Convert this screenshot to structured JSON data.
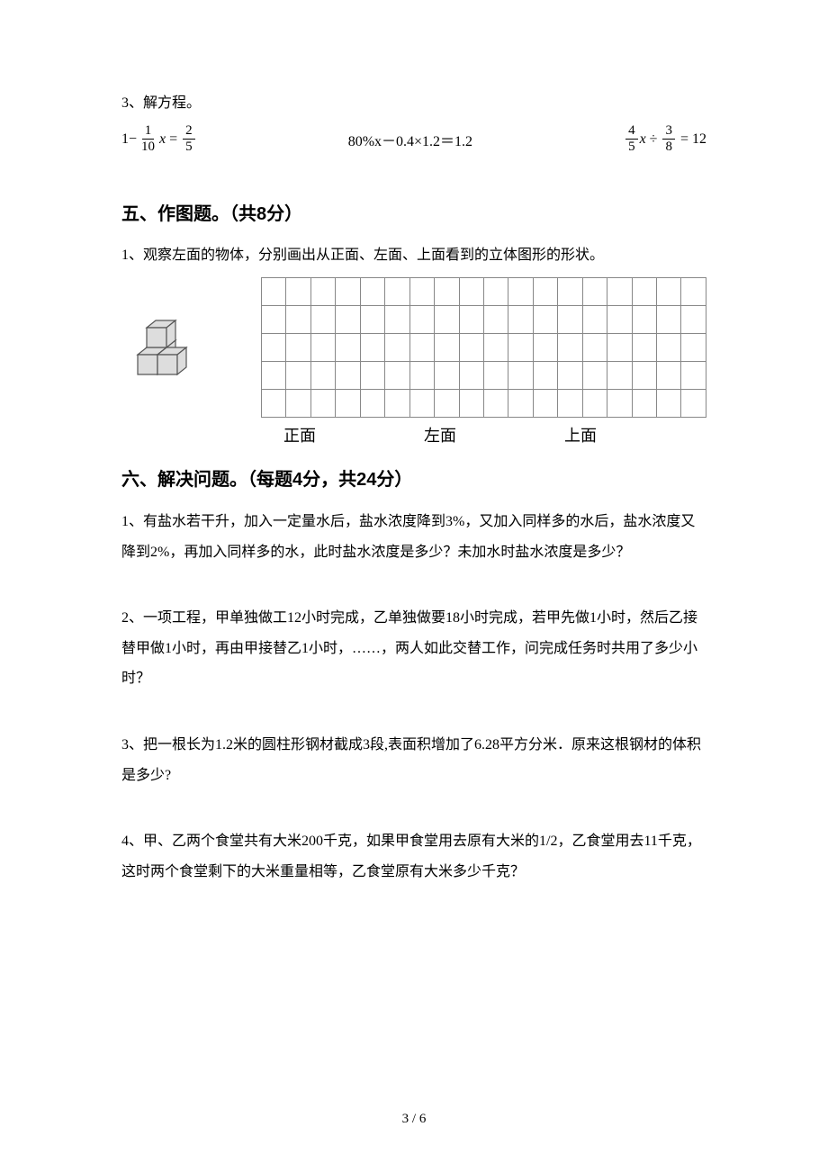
{
  "equations": {
    "heading": "3、解方程。",
    "eq1_left": "1",
    "eq1_frac1_num": "1",
    "eq1_frac1_den": "10",
    "eq1_var": "x",
    "eq1_frac2_num": "2",
    "eq1_frac2_den": "5",
    "eq2": "80%x－0.4×1.2＝1.2",
    "eq3_frac1_num": "4",
    "eq3_frac1_den": "5",
    "eq3_var": "x",
    "eq3_frac2_num": "3",
    "eq3_frac2_den": "8",
    "eq3_result": "12"
  },
  "section5": {
    "title": "五、作图题。（共8分）",
    "q1": "1、观察左面的物体，分别画出从正面、左面、上面看到的立体图形的形状。"
  },
  "grid": {
    "rows": 5,
    "cols": 18,
    "border_color": "#888888"
  },
  "gridLabels": {
    "front": "正面",
    "left": "左面",
    "top": "上面"
  },
  "section6": {
    "title": "六、解决问题。（每题4分，共24分）",
    "q1": "1、有盐水若干升，加入一定量水后，盐水浓度降到3%，又加入同样多的水后，盐水浓度又降到2%，再加入同样多的水，此时盐水浓度是多少？未加水时盐水浓度是多少？",
    "q2": "2、一项工程，甲单独做工12小时完成，乙单独做要18小时完成，若甲先做1小时，然后乙接替甲做1小时，再由甲接替乙1小时，……，两人如此交替工作，问完成任务时共用了多少小时？",
    "q3": "3、把一根长为1.2米的圆柱形钢材截成3段,表面积增加了6.28平方分米．原来这根钢材的体积是多少?",
    "q4": "4、甲、乙两个食堂共有大米200千克，如果甲食堂用去原有大米的1/2，乙食堂用去11千克，这时两个食堂剩下的大米重量相等，乙食堂原有大米多少千克？"
  },
  "pageNum": "3 / 6",
  "cube": {
    "fill": "#dddddd",
    "stroke": "#555555",
    "stroke_width": 1.2
  }
}
